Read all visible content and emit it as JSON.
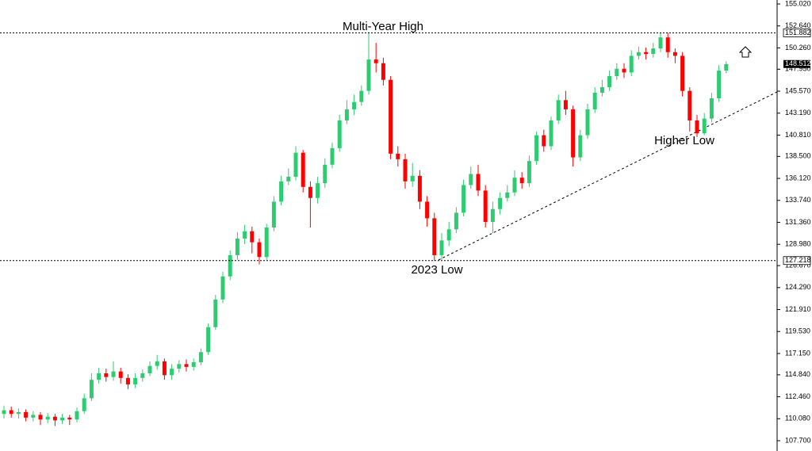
{
  "chart_data": {
    "type": "candlestick",
    "up_color": "#2ecc71",
    "down_color": "#ff0000",
    "annotations": [
      "Multi-Year High",
      "2023 Low",
      "Higher Low"
    ],
    "levels": [
      151.882,
      127.218
    ],
    "last_price": 148.512,
    "ylim": [
      107.7,
      155.02
    ],
    "yticks": [
      {
        "value": 107.7,
        "label": "107.700"
      },
      {
        "value": 110.08,
        "label": "110.080"
      },
      {
        "value": 112.46,
        "label": "112.460"
      },
      {
        "value": 114.84,
        "label": "114.840"
      },
      {
        "value": 117.15,
        "label": "117.150"
      },
      {
        "value": 119.53,
        "label": "119.530"
      },
      {
        "value": 121.91,
        "label": "121.910"
      },
      {
        "value": 124.29,
        "label": "124.290"
      },
      {
        "value": 126.67,
        "label": "126.670"
      },
      {
        "value": 128.98,
        "label": "128.980"
      },
      {
        "value": 131.36,
        "label": "131.360"
      },
      {
        "value": 133.74,
        "label": "133.740"
      },
      {
        "value": 136.12,
        "label": "136.120"
      },
      {
        "value": 138.5,
        "label": "138.500"
      },
      {
        "value": 140.81,
        "label": "140.810"
      },
      {
        "value": 143.19,
        "label": "143.190"
      },
      {
        "value": 145.57,
        "label": "145.570"
      },
      {
        "value": 147.95,
        "label": "147.950"
      },
      {
        "value": 150.26,
        "label": "150.260"
      },
      {
        "value": 152.64,
        "label": "152.640"
      },
      {
        "value": 155.02,
        "label": "155.020"
      }
    ],
    "open": [
      110.6,
      111.0,
      110.6,
      110.8,
      110.2,
      110.5,
      110.0,
      110.3,
      109.9,
      110.2,
      110.0,
      110.9,
      112.3,
      114.3,
      115.0,
      114.6,
      115.2,
      114.5,
      113.8,
      114.5,
      115.0,
      115.8,
      116.3,
      114.8,
      115.5,
      116.0,
      115.7,
      116.2,
      117.3,
      120.0,
      123.0,
      125.5,
      127.8,
      129.6,
      130.4,
      129.2,
      127.6,
      130.8,
      133.6,
      135.8,
      136.3,
      138.9,
      135.2,
      134.0,
      135.6,
      137.6,
      139.4,
      142.4,
      143.6,
      144.4,
      145.6,
      149.0,
      148.6,
      146.8,
      138.8,
      138.2,
      135.8,
      136.4,
      133.6,
      131.8,
      127.8,
      129.4,
      130.6,
      132.4,
      135.4,
      136.6,
      134.8,
      131.4,
      132.8,
      134.0,
      134.6,
      136.2,
      135.6,
      138.0,
      140.8,
      139.6,
      142.4,
      144.6,
      143.6,
      138.4,
      140.8,
      143.6,
      145.4,
      146.0,
      147.2,
      148.0,
      147.6,
      149.4,
      149.8,
      149.6,
      150.2,
      151.4,
      149.8,
      149.4,
      145.6,
      142.4,
      141.0,
      142.6,
      144.8,
      147.8
    ],
    "high": [
      111.5,
      111.4,
      111.2,
      111.1,
      110.9,
      110.8,
      110.7,
      110.6,
      110.6,
      110.5,
      111.3,
      112.8,
      115.0,
      115.6,
      115.5,
      116.3,
      115.6,
      114.9,
      115.0,
      115.4,
      116.3,
      117.0,
      116.6,
      116.0,
      116.4,
      116.5,
      116.6,
      117.7,
      120.4,
      123.5,
      126.0,
      128.3,
      130.3,
      131.1,
      130.9,
      129.6,
      131.2,
      134.2,
      136.4,
      137.2,
      139.6,
      139.2,
      135.8,
      136.3,
      138.3,
      140.0,
      143.0,
      144.6,
      145.2,
      146.2,
      152.0,
      150.8,
      149.2,
      147.2,
      139.6,
      138.8,
      137.8,
      137.0,
      134.2,
      132.4,
      130.2,
      131.4,
      133.0,
      136.0,
      137.4,
      137.6,
      135.4,
      133.6,
      134.6,
      135.4,
      137.0,
      136.8,
      138.6,
      141.2,
      141.4,
      142.8,
      145.2,
      145.6,
      144.0,
      141.4,
      144.2,
      146.0,
      146.8,
      147.8,
      148.6,
      148.6,
      150.0,
      150.4,
      150.3,
      150.8,
      151.9,
      151.9,
      150.2,
      149.8,
      146.0,
      143.0,
      143.2,
      145.4,
      148.4,
      148.8
    ],
    "low": [
      110.1,
      110.2,
      110.1,
      109.8,
      109.8,
      109.4,
      109.6,
      109.3,
      109.5,
      109.4,
      109.7,
      110.6,
      112.0,
      113.9,
      114.1,
      114.2,
      113.9,
      113.3,
      113.4,
      114.1,
      114.7,
      115.4,
      114.3,
      114.3,
      115.1,
      115.2,
      115.3,
      115.9,
      117.0,
      119.7,
      122.6,
      125.1,
      127.3,
      129.0,
      128.0,
      126.8,
      127.3,
      130.4,
      133.2,
      135.4,
      135.9,
      134.6,
      130.8,
      133.4,
      135.1,
      137.2,
      139.0,
      142.0,
      143.0,
      144.0,
      145.2,
      147.6,
      146.2,
      138.2,
      137.4,
      135.0,
      135.2,
      132.8,
      130.9,
      127.2,
      127.3,
      128.8,
      130.2,
      132.0,
      135.0,
      134.2,
      130.8,
      130.2,
      132.2,
      133.6,
      134.2,
      135.0,
      135.2,
      137.6,
      139.0,
      139.2,
      142.0,
      143.0,
      137.4,
      138.0,
      140.4,
      143.2,
      145.0,
      145.6,
      146.8,
      147.0,
      147.2,
      149.0,
      149.0,
      149.2,
      149.8,
      149.2,
      148.6,
      145.0,
      141.2,
      140.6,
      140.8,
      142.2,
      144.4,
      147.5
    ],
    "close": [
      111.0,
      110.6,
      110.8,
      110.2,
      110.5,
      110.0,
      110.3,
      109.9,
      110.2,
      110.0,
      110.9,
      112.3,
      114.3,
      115.0,
      114.6,
      115.2,
      114.5,
      113.8,
      114.5,
      115.0,
      115.8,
      116.3,
      114.8,
      115.5,
      116.0,
      115.7,
      116.2,
      117.3,
      120.0,
      123.0,
      125.5,
      127.8,
      129.6,
      130.4,
      129.2,
      127.6,
      130.8,
      133.6,
      135.8,
      136.3,
      138.9,
      135.2,
      134.0,
      135.6,
      137.6,
      139.4,
      142.4,
      143.6,
      144.4,
      145.6,
      149.0,
      148.6,
      146.8,
      138.8,
      138.2,
      135.8,
      136.4,
      133.6,
      131.8,
      127.8,
      129.4,
      130.6,
      132.4,
      135.4,
      136.6,
      134.8,
      131.4,
      132.8,
      134.0,
      134.6,
      136.2,
      135.6,
      138.0,
      140.8,
      139.6,
      142.4,
      144.6,
      143.6,
      138.4,
      140.8,
      143.6,
      145.4,
      146.0,
      147.2,
      148.0,
      147.6,
      149.4,
      149.8,
      149.6,
      150.2,
      151.4,
      149.8,
      149.4,
      145.6,
      142.4,
      141.0,
      142.6,
      144.8,
      147.8,
      148.5
    ]
  }
}
